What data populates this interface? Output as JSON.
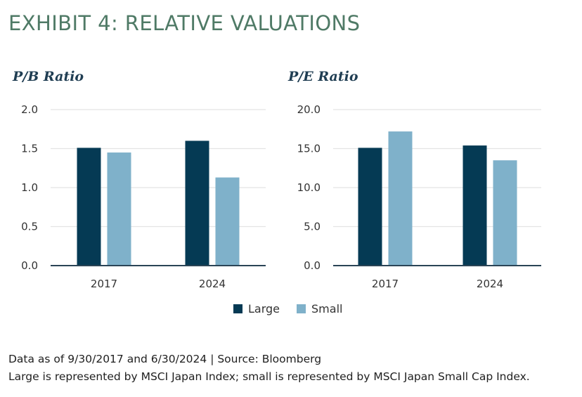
{
  "title": "EXHIBIT 4: RELATIVE VALUATIONS",
  "colors": {
    "large": "#053a54",
    "small": "#7fb1ca",
    "title": "#4f7a66",
    "axis": "#2a4456",
    "grid": "#e4e4e4"
  },
  "legend": {
    "large_label": "Large",
    "small_label": "Small"
  },
  "chart_data": [
    {
      "type": "bar",
      "title": "P/B Ratio",
      "categories": [
        "2017",
        "2024"
      ],
      "series": [
        {
          "name": "Large",
          "values": [
            1.51,
            1.6
          ]
        },
        {
          "name": "Small",
          "values": [
            1.45,
            1.13
          ]
        }
      ],
      "ylim": [
        0,
        2.0
      ],
      "yticks": [
        "0.0",
        "0.5",
        "1.0",
        "1.5",
        "2.0"
      ],
      "grid": true,
      "legend": "bottom-center"
    },
    {
      "type": "bar",
      "title": "P/E Ratio",
      "categories": [
        "2017",
        "2024"
      ],
      "series": [
        {
          "name": "Large",
          "values": [
            15.1,
            15.4
          ]
        },
        {
          "name": "Small",
          "values": [
            17.2,
            13.5
          ]
        }
      ],
      "ylim": [
        0,
        20.0
      ],
      "yticks": [
        "0.0",
        "5.0",
        "10.0",
        "15.0",
        "20.0"
      ],
      "grid": true,
      "legend": "bottom-center"
    }
  ],
  "footnotes": [
    "Data as of 9/30/2017 and 6/30/2024 | Source: Bloomberg",
    "Large is represented by MSCI Japan Index; small is represented by MSCI Japan Small Cap Index."
  ]
}
